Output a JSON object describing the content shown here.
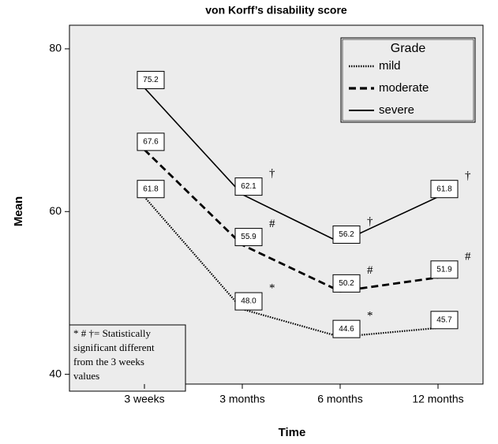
{
  "chart_data": {
    "type": "line",
    "title": "von Korff’s disability score",
    "x_label": "Time",
    "y_label": "Mean",
    "categories": [
      "3 weeks",
      "3 months",
      "6 months",
      "12 months"
    ],
    "ylim": [
      38.8,
      82.9
    ],
    "yticks": [
      40,
      60,
      80
    ],
    "legend": {
      "title": "Grade",
      "position": "upper right"
    },
    "series": [
      {
        "name": "mild",
        "color": "#000000",
        "dash": "dotted",
        "values": [
          61.8,
          48.0,
          44.6,
          45.7
        ],
        "value_labels": [
          "61.8",
          "48.0",
          "44.6",
          "45.7"
        ]
      },
      {
        "name": "moderate",
        "color": "#000000",
        "dash": "dashed",
        "values": [
          67.6,
          55.9,
          50.2,
          51.9
        ],
        "value_labels": [
          "67.6",
          "55.9",
          "50.2",
          "51.9"
        ]
      },
      {
        "name": "severe",
        "color": "#000000",
        "dash": "solid",
        "values": [
          75.2,
          62.1,
          56.2,
          61.8
        ],
        "value_labels": [
          "75.2",
          "62.1",
          "56.2",
          "61.8"
        ]
      }
    ],
    "annotations": [
      {
        "text": "*",
        "series": 0,
        "index": 1
      },
      {
        "text": "*",
        "series": 0,
        "index": 2
      },
      {
        "text": "#",
        "series": 1,
        "index": 1
      },
      {
        "text": "#",
        "series": 1,
        "index": 2
      },
      {
        "text": "#",
        "series": 1,
        "index": 3
      },
      {
        "text": "†",
        "series": 2,
        "index": 1
      },
      {
        "text": "†",
        "series": 2,
        "index": 2
      },
      {
        "text": "†",
        "series": 2,
        "index": 3
      }
    ],
    "note": [
      "* # †= Statistically",
      "significant different",
      "from the 3 weeks",
      "values"
    ]
  }
}
